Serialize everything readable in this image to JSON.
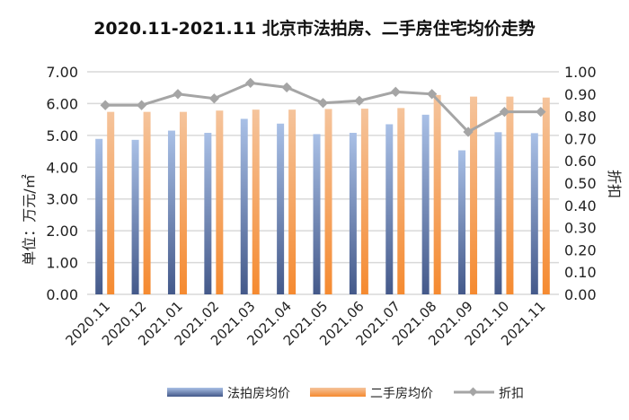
{
  "chart_data": {
    "type": "bar",
    "title": "2020.11-2021.11 北京市法拍房、二手房住宅均价走势",
    "ylabel": "单位：万元/㎡",
    "y2label": "折扣",
    "ylim": [
      0,
      7
    ],
    "y2lim": [
      0,
      1
    ],
    "yticks": [
      "0.00",
      "1.00",
      "2.00",
      "3.00",
      "4.00",
      "5.00",
      "6.00",
      "7.00"
    ],
    "y2ticks": [
      "0.00",
      "0.10",
      "0.20",
      "0.30",
      "0.40",
      "0.50",
      "0.60",
      "0.70",
      "0.80",
      "0.90",
      "1.00"
    ],
    "grid": true,
    "legend_position": "bottom",
    "categories": [
      "2020.11",
      "2020.12",
      "2021.01",
      "2021.02",
      "2021.03",
      "2021.04",
      "2021.05",
      "2021.06",
      "2021.07",
      "2021.08",
      "2021.09",
      "2021.10",
      "2021.11"
    ],
    "series": [
      {
        "name": "法拍房均价",
        "type": "bar",
        "axis": "left",
        "color": "#4a6396",
        "values": [
          4.89,
          4.86,
          5.15,
          5.08,
          5.52,
          5.37,
          5.04,
          5.08,
          5.35,
          5.65,
          4.53,
          5.1,
          5.07
        ]
      },
      {
        "name": "二手房均价",
        "type": "bar",
        "axis": "left",
        "color": "#f28e3c",
        "values": [
          5.74,
          5.74,
          5.74,
          5.78,
          5.81,
          5.81,
          5.83,
          5.84,
          5.86,
          6.27,
          6.22,
          6.22,
          6.19
        ]
      },
      {
        "name": "折扣",
        "type": "line",
        "axis": "right",
        "color": "#a5a5a5",
        "values": [
          0.85,
          0.85,
          0.9,
          0.88,
          0.95,
          0.93,
          0.86,
          0.87,
          0.91,
          0.9,
          0.73,
          0.82,
          0.82
        ]
      }
    ]
  }
}
